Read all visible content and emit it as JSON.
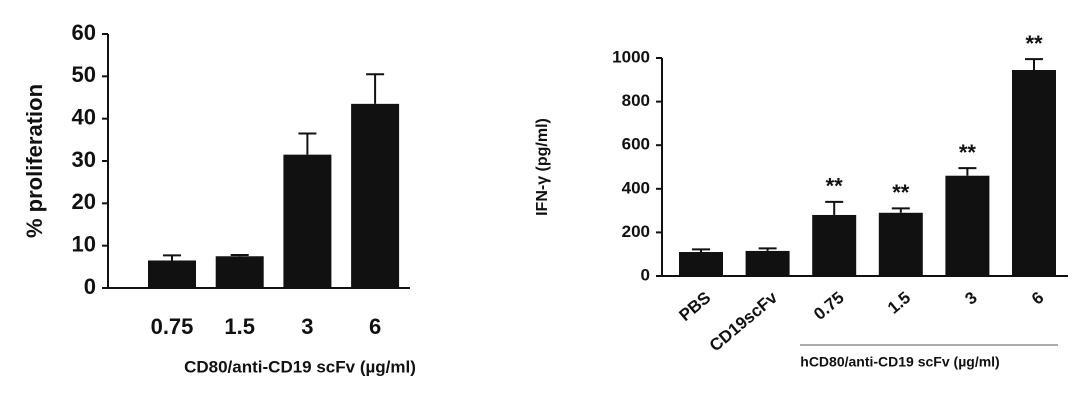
{
  "chart_data": [
    {
      "type": "bar",
      "categories": [
        "0.75",
        "1.5",
        "3",
        "6"
      ],
      "values": [
        6.5,
        7.5,
        31.5,
        43.5
      ],
      "errors": [
        1.2,
        0.3,
        5,
        7
      ],
      "color": "#111111",
      "ylim": [
        0,
        60
      ],
      "yticks": [
        0,
        10,
        20,
        30,
        40,
        50,
        60
      ],
      "x_label": "CD80/anti-CD19 scFv (µg/ml)",
      "y_label": "% proliferation"
    },
    {
      "type": "bar",
      "categories": [
        "PBS",
        "CD19scFv",
        "0.75",
        "1.5",
        "3",
        "6"
      ],
      "values": [
        110,
        115,
        280,
        290,
        460,
        945
      ],
      "errors": [
        12,
        12,
        60,
        20,
        35,
        50
      ],
      "significance": [
        null,
        null,
        "**",
        "**",
        "**",
        "**"
      ],
      "color": "#111111",
      "ylim": [
        0,
        1000
      ],
      "yticks": [
        0,
        200,
        400,
        600,
        800,
        1000
      ],
      "x_label": "hCD80/anti-CD19 scFv (µg/ml)",
      "y_label": "IFN-γ (pg/ml)"
    }
  ]
}
